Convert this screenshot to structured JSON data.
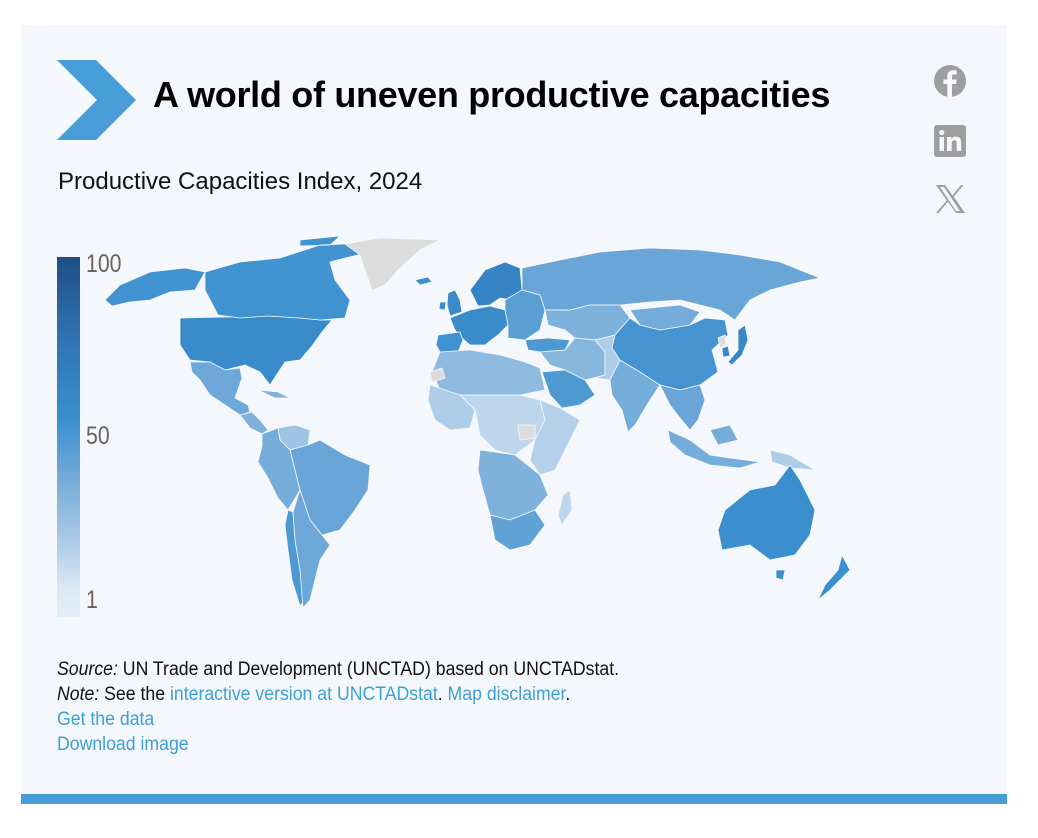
{
  "header": {
    "title": "A world of uneven productive capacities",
    "subtitle": "Productive Capacities Index, 2024"
  },
  "social": [
    {
      "name": "facebook-icon",
      "label": "Facebook"
    },
    {
      "name": "linkedin-icon",
      "label": "LinkedIn"
    },
    {
      "name": "x-icon",
      "label": "X"
    }
  ],
  "colors": {
    "accent": "#479ed6",
    "background": "#f4f7fc",
    "no_data": "#dcdcdc",
    "scale_min": "#e3edf6",
    "scale_mid": "#6ea8d8",
    "scale_max": "#1f4e86",
    "icon_gray": "#9e9e9e",
    "link": "#3f9fd8"
  },
  "legend": {
    "labels": [
      "100",
      "50",
      "1"
    ],
    "min": 1,
    "max": 100
  },
  "chart_data": {
    "type": "choropleth",
    "title": "Productive Capacities Index, 2024",
    "scale": {
      "min": 1,
      "max": 100,
      "ticks": [
        1,
        50,
        100
      ]
    },
    "regions": [
      {
        "name": "United States",
        "value": 72
      },
      {
        "name": "Canada",
        "value": 68
      },
      {
        "name": "Alaska (US)",
        "value": 68
      },
      {
        "name": "Greenland",
        "value": null
      },
      {
        "name": "Mexico",
        "value": 50
      },
      {
        "name": "Central America & Caribbean",
        "value": 45
      },
      {
        "name": "Venezuela",
        "value": 35
      },
      {
        "name": "Brazil",
        "value": 52
      },
      {
        "name": "Andean South America",
        "value": 48
      },
      {
        "name": "Chile",
        "value": 62
      },
      {
        "name": "Argentina",
        "value": 50
      },
      {
        "name": "Western Europe",
        "value": 72
      },
      {
        "name": "Nordics",
        "value": 75
      },
      {
        "name": "Iberia",
        "value": 68
      },
      {
        "name": "UK & Ireland",
        "value": 72
      },
      {
        "name": "Iceland",
        "value": 70
      },
      {
        "name": "Eastern Europe",
        "value": 58
      },
      {
        "name": "Russia",
        "value": 52
      },
      {
        "name": "Central Asia",
        "value": 45
      },
      {
        "name": "Turkey",
        "value": 62
      },
      {
        "name": "Saudi Arabia & Gulf",
        "value": 62
      },
      {
        "name": "Iran & Near East",
        "value": 42
      },
      {
        "name": "North Africa",
        "value": 40
      },
      {
        "name": "Western Sahara",
        "value": null
      },
      {
        "name": "Sahel & Central Africa",
        "value": 25
      },
      {
        "name": "West Africa",
        "value": 30
      },
      {
        "name": "East Africa",
        "value": 28
      },
      {
        "name": "South Sudan",
        "value": null
      },
      {
        "name": "Southern Africa",
        "value": 45
      },
      {
        "name": "South Africa",
        "value": 55
      },
      {
        "name": "Madagascar",
        "value": 25
      },
      {
        "name": "India",
        "value": 48
      },
      {
        "name": "Pakistan & Afghanistan",
        "value": 30
      },
      {
        "name": "China",
        "value": 66
      },
      {
        "name": "Mongolia",
        "value": 48
      },
      {
        "name": "Japan",
        "value": 74
      },
      {
        "name": "South Korea",
        "value": 74
      },
      {
        "name": "North Korea",
        "value": null
      },
      {
        "name": "Southeast Asia",
        "value": 52
      },
      {
        "name": "Indonesia",
        "value": 48
      },
      {
        "name": "Papua New Guinea",
        "value": 30
      },
      {
        "name": "Australia",
        "value": 70
      },
      {
        "name": "New Zealand",
        "value": 70
      }
    ]
  },
  "notes": {
    "source_label": "Source:",
    "source_text": " UN Trade and Development (UNCTAD) based on UNCTADstat.",
    "note_label": "Note:",
    "note_text": " See the ",
    "interactive_link": "interactive version at UNCTADstat",
    "sep": ". ",
    "disclaimer_link": "Map disclaimer",
    "end": ".",
    "get_data_link": "Get the data",
    "download_link": "Download image"
  }
}
